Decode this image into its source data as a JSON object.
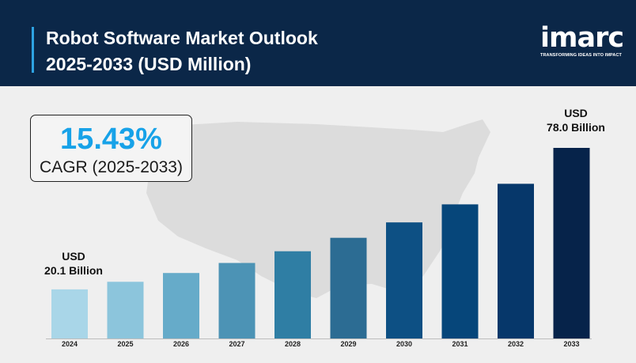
{
  "header": {
    "title_line1": "Robot Software Market Outlook",
    "title_line2": "2025-2033 (USD Million)"
  },
  "logo": {
    "word": "imarc",
    "tagline": "TRANSFORMING IDEAS INTO IMPACT"
  },
  "cagr": {
    "value": "15.43%",
    "label": "CAGR (2025-2033)"
  },
  "annotations": {
    "start_line1": "USD",
    "start_line2": "20.1 Billion",
    "end_line1": "USD",
    "end_line2": "78.0 Billion"
  },
  "colors": {
    "header_bg": "#0b2748",
    "accent": "#17a2e8",
    "map": "#dcdcdc"
  },
  "chart_data": {
    "type": "bar",
    "title": "",
    "xlabel": "",
    "ylabel": "",
    "categories": [
      "2024",
      "2025",
      "2026",
      "2027",
      "2028",
      "2029",
      "2030",
      "2031",
      "2032",
      "2033"
    ],
    "values": [
      20.1,
      23.2,
      26.8,
      30.9,
      35.7,
      41.2,
      47.5,
      54.9,
      63.3,
      78.0
    ],
    "ylim": [
      0,
      78.0
    ],
    "grid": false,
    "legend": "none",
    "bar_colors": [
      "#a9d6e8",
      "#8cc5dc",
      "#66abc9",
      "#4c93b5",
      "#2f7ea4",
      "#2c6c93",
      "#0d5084",
      "#06467a",
      "#06376a",
      "#06234a"
    ]
  }
}
